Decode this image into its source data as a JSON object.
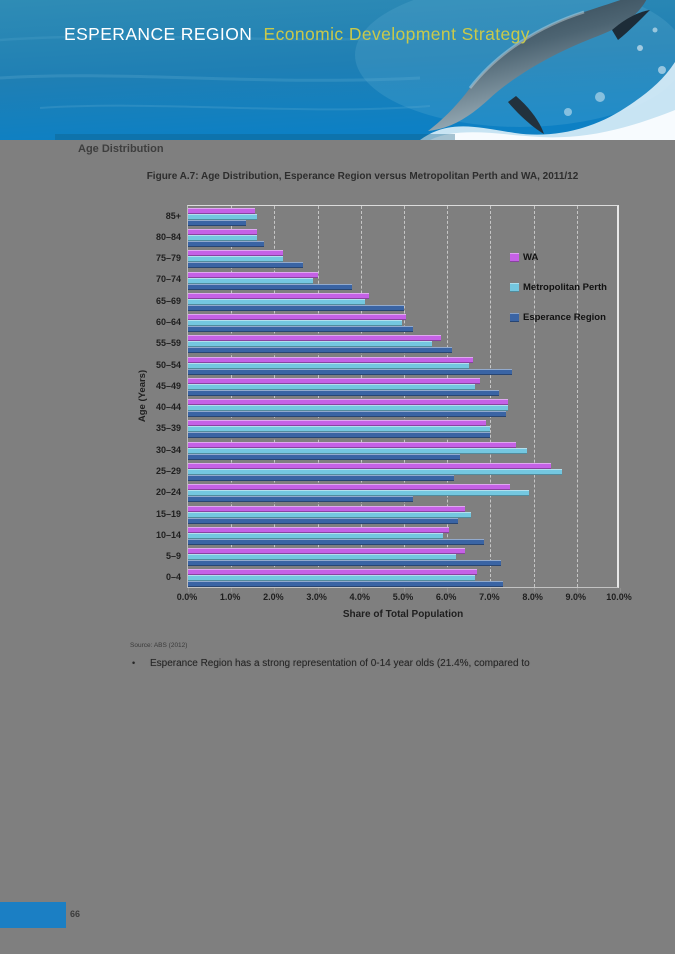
{
  "header": {
    "title_main": "ESPERANCE REGION",
    "title_sub": "Economic Development Strategy"
  },
  "page": {
    "section_heading": "Age Distribution",
    "figure_title": "Figure A.7: Age Distribution, Esperance Region versus Metropolitan Perth and WA, 2011/12",
    "source_note": "Source: ABS (2012)",
    "bullet_glyph": "•",
    "bullet_text": "Esperance Region has a strong representation of 0-14 year olds (21.4%, compared to",
    "page_number": "66"
  },
  "colors": {
    "page_background": "#7f7f7f",
    "footer_accent": "#1b7fc4",
    "header_gold": "#c9c94a",
    "wa_bar": "#c561e6",
    "metropolitan_perth_bar": "#74c7e0",
    "esperance_region_bar": "#3a64a4"
  },
  "chart_data": {
    "type": "bar",
    "orientation": "horizontal",
    "title": "Figure A.7: Age Distribution, Esperance Region versus Metropolitan Perth and WA, 2011/12",
    "xlabel": "Share of Total Population",
    "ylabel": "Age (Years)",
    "xlim": [
      0,
      10
    ],
    "x_ticks": [
      "0.0%",
      "1.0%",
      "2.0%",
      "3.0%",
      "4.0%",
      "5.0%",
      "6.0%",
      "7.0%",
      "8.0%",
      "9.0%",
      "10.0%"
    ],
    "grid": "vertical-dashed",
    "legend_position": "inside-right",
    "categories": [
      "85+",
      "80–84",
      "75–79",
      "70–74",
      "65–69",
      "60–64",
      "55–59",
      "50–54",
      "45–49",
      "40–44",
      "35–39",
      "30–34",
      "25–29",
      "20–24",
      "15–19",
      "10–14",
      "5–9",
      "0–4"
    ],
    "series": [
      {
        "name": "WA",
        "color": "#c561e6",
        "values": [
          1.55,
          1.6,
          2.2,
          3.0,
          4.2,
          5.05,
          5.85,
          6.6,
          6.75,
          7.4,
          6.9,
          7.6,
          8.4,
          7.45,
          6.4,
          6.05,
          6.4,
          6.7
        ]
      },
      {
        "name": "Metropolitan Perth",
        "color": "#74c7e0",
        "values": [
          1.6,
          1.6,
          2.2,
          2.9,
          4.1,
          4.95,
          5.65,
          6.5,
          6.65,
          7.4,
          7.0,
          7.85,
          8.65,
          7.9,
          6.55,
          5.9,
          6.2,
          6.65
        ]
      },
      {
        "name": "Esperance Region",
        "color": "#3a64a4",
        "values": [
          1.35,
          1.75,
          2.65,
          3.8,
          5.0,
          5.2,
          6.1,
          7.5,
          7.2,
          7.35,
          7.0,
          6.3,
          6.15,
          5.2,
          6.25,
          6.85,
          7.25,
          7.3
        ]
      }
    ]
  }
}
